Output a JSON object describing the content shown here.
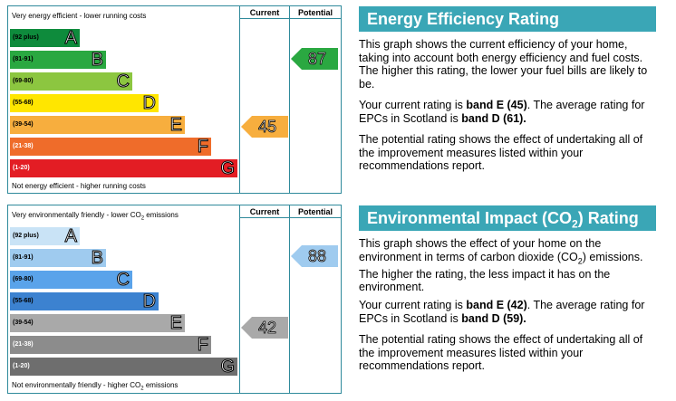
{
  "energy": {
    "top_label": "Very energy efficient - lower running costs",
    "bottom_label": "Not energy efficient - higher running costs",
    "col_current": "Current",
    "col_potential": "Potential",
    "bands": [
      {
        "range": "(92 plus)",
        "letter": "A",
        "color": "#0e8b3c"
      },
      {
        "range": "(81-91)",
        "letter": "B",
        "color": "#2aa841"
      },
      {
        "range": "(69-80)",
        "letter": "C",
        "color": "#8cc640"
      },
      {
        "range": "(55-68)",
        "letter": "D",
        "color": "#ffe600"
      },
      {
        "range": "(39-54)",
        "letter": "E",
        "color": "#f7ae3e"
      },
      {
        "range": "(21-38)",
        "letter": "F",
        "color": "#ef6c2a"
      },
      {
        "range": "(1-20)",
        "letter": "G",
        "color": "#e31d24"
      }
    ],
    "current": {
      "value": "45",
      "color": "#f7ae3e"
    },
    "potential": {
      "value": "87",
      "color": "#2aa841"
    },
    "title": "Energy Efficiency Rating",
    "p1": "This graph shows the current efficiency of your home, taking into account both energy efficiency and fuel costs. The higher this rating, the lower your fuel bills are likely to be.",
    "p2_pre": "Your current rating is ",
    "p2_b1": "band E (45)",
    "p2_mid": ". The average rating for EPCs in Scotland is ",
    "p2_b2": "band D (61).",
    "p3": "The potential rating shows the effect of undertaking all of the improvement measures listed within your recommendations report."
  },
  "environment": {
    "top_label_pre": "Very environmentally friendly - lower CO",
    "top_label_sub": "2",
    "top_label_post": " emissions",
    "bottom_label_pre": "Not environmentally friendly - higher CO",
    "bottom_label_sub": "2",
    "bottom_label_post": " emissions",
    "col_current": "Current",
    "col_potential": "Potential",
    "bands": [
      {
        "range": "(92 plus)",
        "letter": "A",
        "color": "#c9e3f6"
      },
      {
        "range": "(81-91)",
        "letter": "B",
        "color": "#9fcbef"
      },
      {
        "range": "(69-80)",
        "letter": "C",
        "color": "#5aa3ea"
      },
      {
        "range": "(55-68)",
        "letter": "D",
        "color": "#3c82d0"
      },
      {
        "range": "(39-54)",
        "letter": "E",
        "color": "#a9a9a9"
      },
      {
        "range": "(21-38)",
        "letter": "F",
        "color": "#8c8c8c"
      },
      {
        "range": "(1-20)",
        "letter": "G",
        "color": "#6e6e6e"
      }
    ],
    "current": {
      "value": "42",
      "color": "#a9a9a9"
    },
    "potential": {
      "value": "88",
      "color": "#9fcbef"
    },
    "title_pre": "Environmental Impact (CO",
    "title_sub": "2",
    "title_post": ") Rating",
    "p1_pre": "This graph shows the effect of your home on the environment in terms of carbon dioxide (CO",
    "p1_sub": "2",
    "p1_post": ") emissions. The higher the rating, the less impact it has on the environment.",
    "p2_pre": "Your current rating is ",
    "p2_b1": "band E (42)",
    "p2_mid": ". The average rating for EPCs in Scotland is ",
    "p2_b2": "band D (59).",
    "p3": "The potential rating shows the effect of undertaking all of the improvement measures listed within your recommendations report."
  }
}
